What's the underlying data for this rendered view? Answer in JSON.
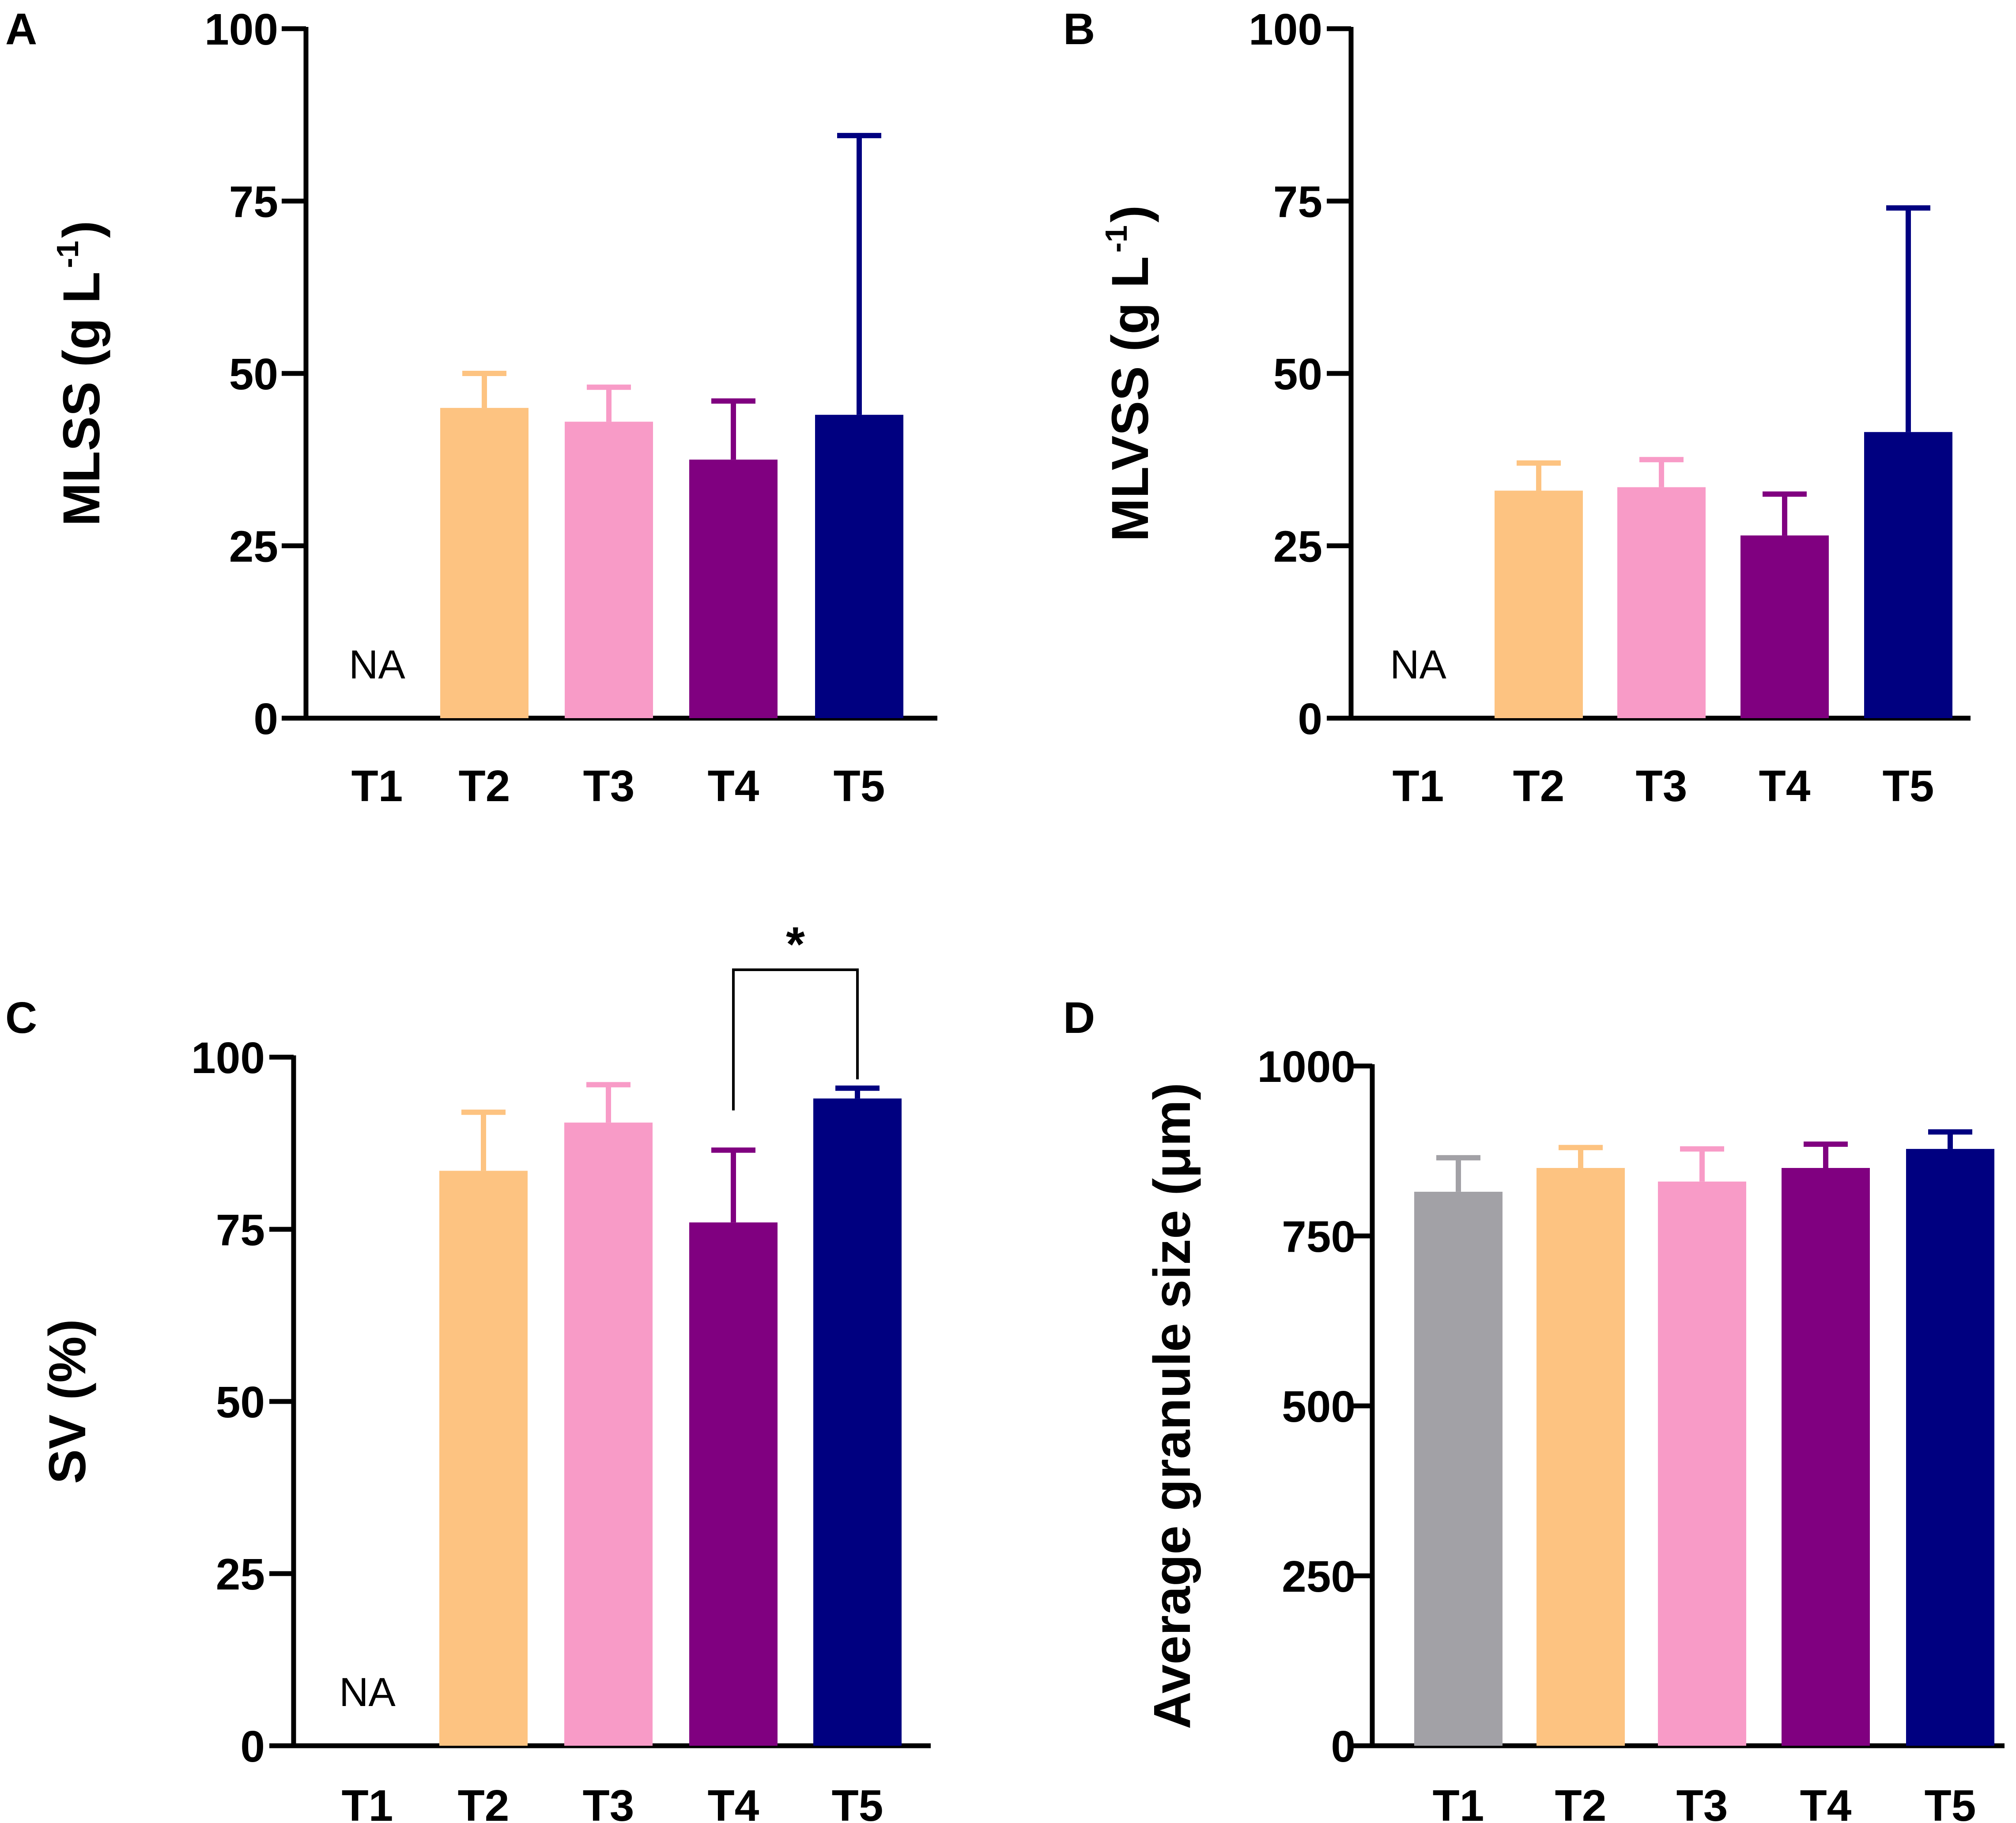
{
  "chart_data": [
    {
      "panel": "A",
      "type": "bar",
      "ylabel": "MLSS (g L",
      "ylabel_sup": "-1",
      "ylabel_end": ")",
      "ylim": [
        0,
        100
      ],
      "yticks": [
        0,
        25,
        50,
        75,
        100
      ],
      "categories": [
        "T1",
        "T2",
        "T3",
        "T4",
        "T5"
      ],
      "values": [
        null,
        45,
        43,
        37.5,
        44
      ],
      "errors": [
        null,
        5,
        5,
        8.5,
        40.5
      ],
      "colors": [
        "#A2A1A6",
        "#FDC381",
        "#F89BC7",
        "#800080",
        "#000080"
      ],
      "missing_label": "NA"
    },
    {
      "panel": "B",
      "type": "bar",
      "ylabel": "MLVSS (g L",
      "ylabel_sup": "-1",
      "ylabel_end": ")",
      "ylim": [
        0,
        100
      ],
      "yticks": [
        0,
        25,
        50,
        75,
        100
      ],
      "categories": [
        "T1",
        "T2",
        "T3",
        "T4",
        "T5"
      ],
      "values": [
        null,
        33,
        33.5,
        26.5,
        41.5
      ],
      "errors": [
        null,
        4,
        4,
        6,
        32.5
      ],
      "colors": [
        "#A2A1A6",
        "#FDC381",
        "#F89BC7",
        "#800080",
        "#000080"
      ],
      "missing_label": "NA"
    },
    {
      "panel": "C",
      "type": "bar",
      "ylabel": "SV (%)",
      "ylim": [
        0,
        100
      ],
      "yticks": [
        0,
        25,
        50,
        75,
        100
      ],
      "categories": [
        "T1",
        "T2",
        "T3",
        "T4",
        "T5"
      ],
      "values": [
        null,
        83.5,
        90.5,
        76,
        94
      ],
      "errors": [
        null,
        8.5,
        5.5,
        10.5,
        1.5
      ],
      "colors": [
        "#A2A1A6",
        "#FDC381",
        "#F89BC7",
        "#800080",
        "#000080"
      ],
      "missing_label": "NA",
      "significance": {
        "from": "T4",
        "to": "T5",
        "label": "*"
      }
    },
    {
      "panel": "D",
      "type": "bar",
      "ylabel": "Average granule size (μm)",
      "ylim": [
        0,
        1000
      ],
      "yticks": [
        0,
        250,
        500,
        750,
        1000
      ],
      "categories": [
        "T1",
        "T2",
        "T3",
        "T4",
        "T5"
      ],
      "values": [
        815,
        850,
        830,
        850,
        878
      ],
      "errors": [
        50,
        30,
        48,
        35,
        25
      ],
      "colors": [
        "#A2A1A6",
        "#FDC381",
        "#F89BC7",
        "#800080",
        "#000080"
      ]
    }
  ]
}
